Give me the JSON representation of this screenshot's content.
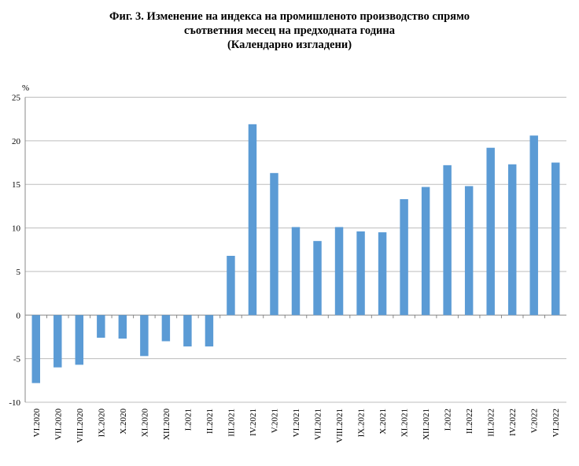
{
  "chart_data": {
    "type": "bar",
    "title_lines": [
      "Фиг. 3. Изменение на индекса на промишленото производство спрямо",
      "съответния месец на предходната година",
      "(Календарно изгладени)"
    ],
    "ylabel": "%",
    "xlabel": "",
    "ylim": [
      -10,
      25
    ],
    "yticks": [
      -10,
      -5,
      0,
      5,
      10,
      15,
      20,
      25
    ],
    "grid": true,
    "bar_color": "#5b9bd5",
    "categories": [
      "VI.2020",
      "VII.2020",
      "VIII.2020",
      "IX.2020",
      "X.2020",
      "XI.2020",
      "XII.2020",
      "I.2021",
      "II.2021",
      "III.2021",
      "IV.2021",
      "V.2021",
      "VI.2021",
      "VII.2021",
      "VIII.2021",
      "IX.2021",
      "X.2021",
      "XI.2021",
      "XII.2021",
      "I.2022",
      "II.2022",
      "III.2022",
      "IV.2022",
      "V.2022",
      "VI.2022"
    ],
    "values": [
      -7.8,
      -6.0,
      -5.7,
      -2.6,
      -2.7,
      -4.7,
      -3.0,
      -3.6,
      -3.6,
      6.8,
      21.9,
      16.3,
      10.1,
      8.5,
      10.1,
      9.6,
      9.5,
      13.3,
      14.7,
      17.2,
      14.8,
      19.2,
      17.3,
      20.6,
      17.5
    ]
  }
}
